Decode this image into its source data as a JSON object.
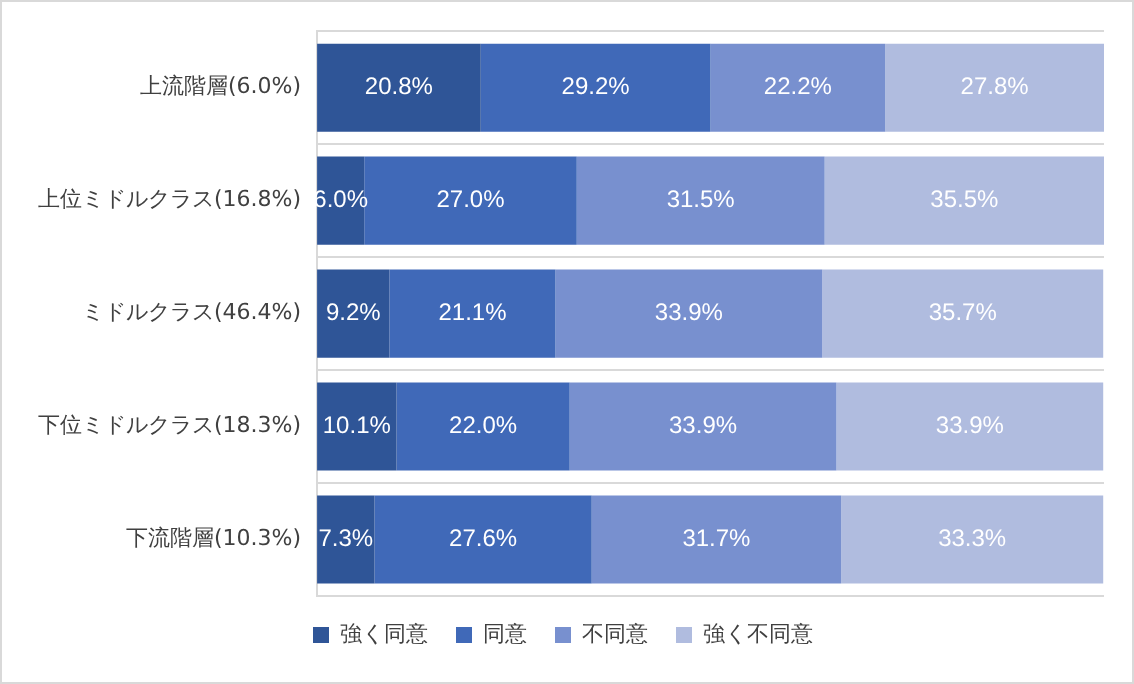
{
  "chart_data": {
    "type": "bar",
    "orientation": "horizontal",
    "stacked": true,
    "grid": "y",
    "legend": "bottom",
    "categories": [
      "上流階層(6.0%)",
      "上位ミドルクラス(16.8%)",
      "ミドルクラス(46.4%)",
      "下位ミドルクラス(18.3%)",
      "下流階層(10.3%)"
    ],
    "series": [
      {
        "name": "強く同意",
        "color": "#2f5597",
        "values": [
          20.8,
          6.0,
          9.2,
          10.1,
          7.3
        ],
        "value_labels": [
          "20.8%",
          "6.0%",
          "9.2%",
          "10.1%",
          "7.3%"
        ]
      },
      {
        "name": "同意",
        "color": "#4069b8",
        "values": [
          29.2,
          27.0,
          21.1,
          22.0,
          27.6
        ],
        "value_labels": [
          "29.2%",
          "27.0%",
          "21.1%",
          "22.0%",
          "27.6%"
        ]
      },
      {
        "name": "不同意",
        "color": "#7890cf",
        "values": [
          22.2,
          31.5,
          33.9,
          33.9,
          31.7
        ],
        "value_labels": [
          "22.2%",
          "31.5%",
          "33.9%",
          "33.9%",
          "31.7%"
        ]
      },
      {
        "name": "強く不同意",
        "color": "#b0bcdf",
        "values": [
          27.8,
          35.5,
          35.7,
          33.9,
          33.3
        ],
        "value_labels": [
          "27.8%",
          "35.5%",
          "35.7%",
          "33.9%",
          "33.3%"
        ]
      }
    ]
  }
}
